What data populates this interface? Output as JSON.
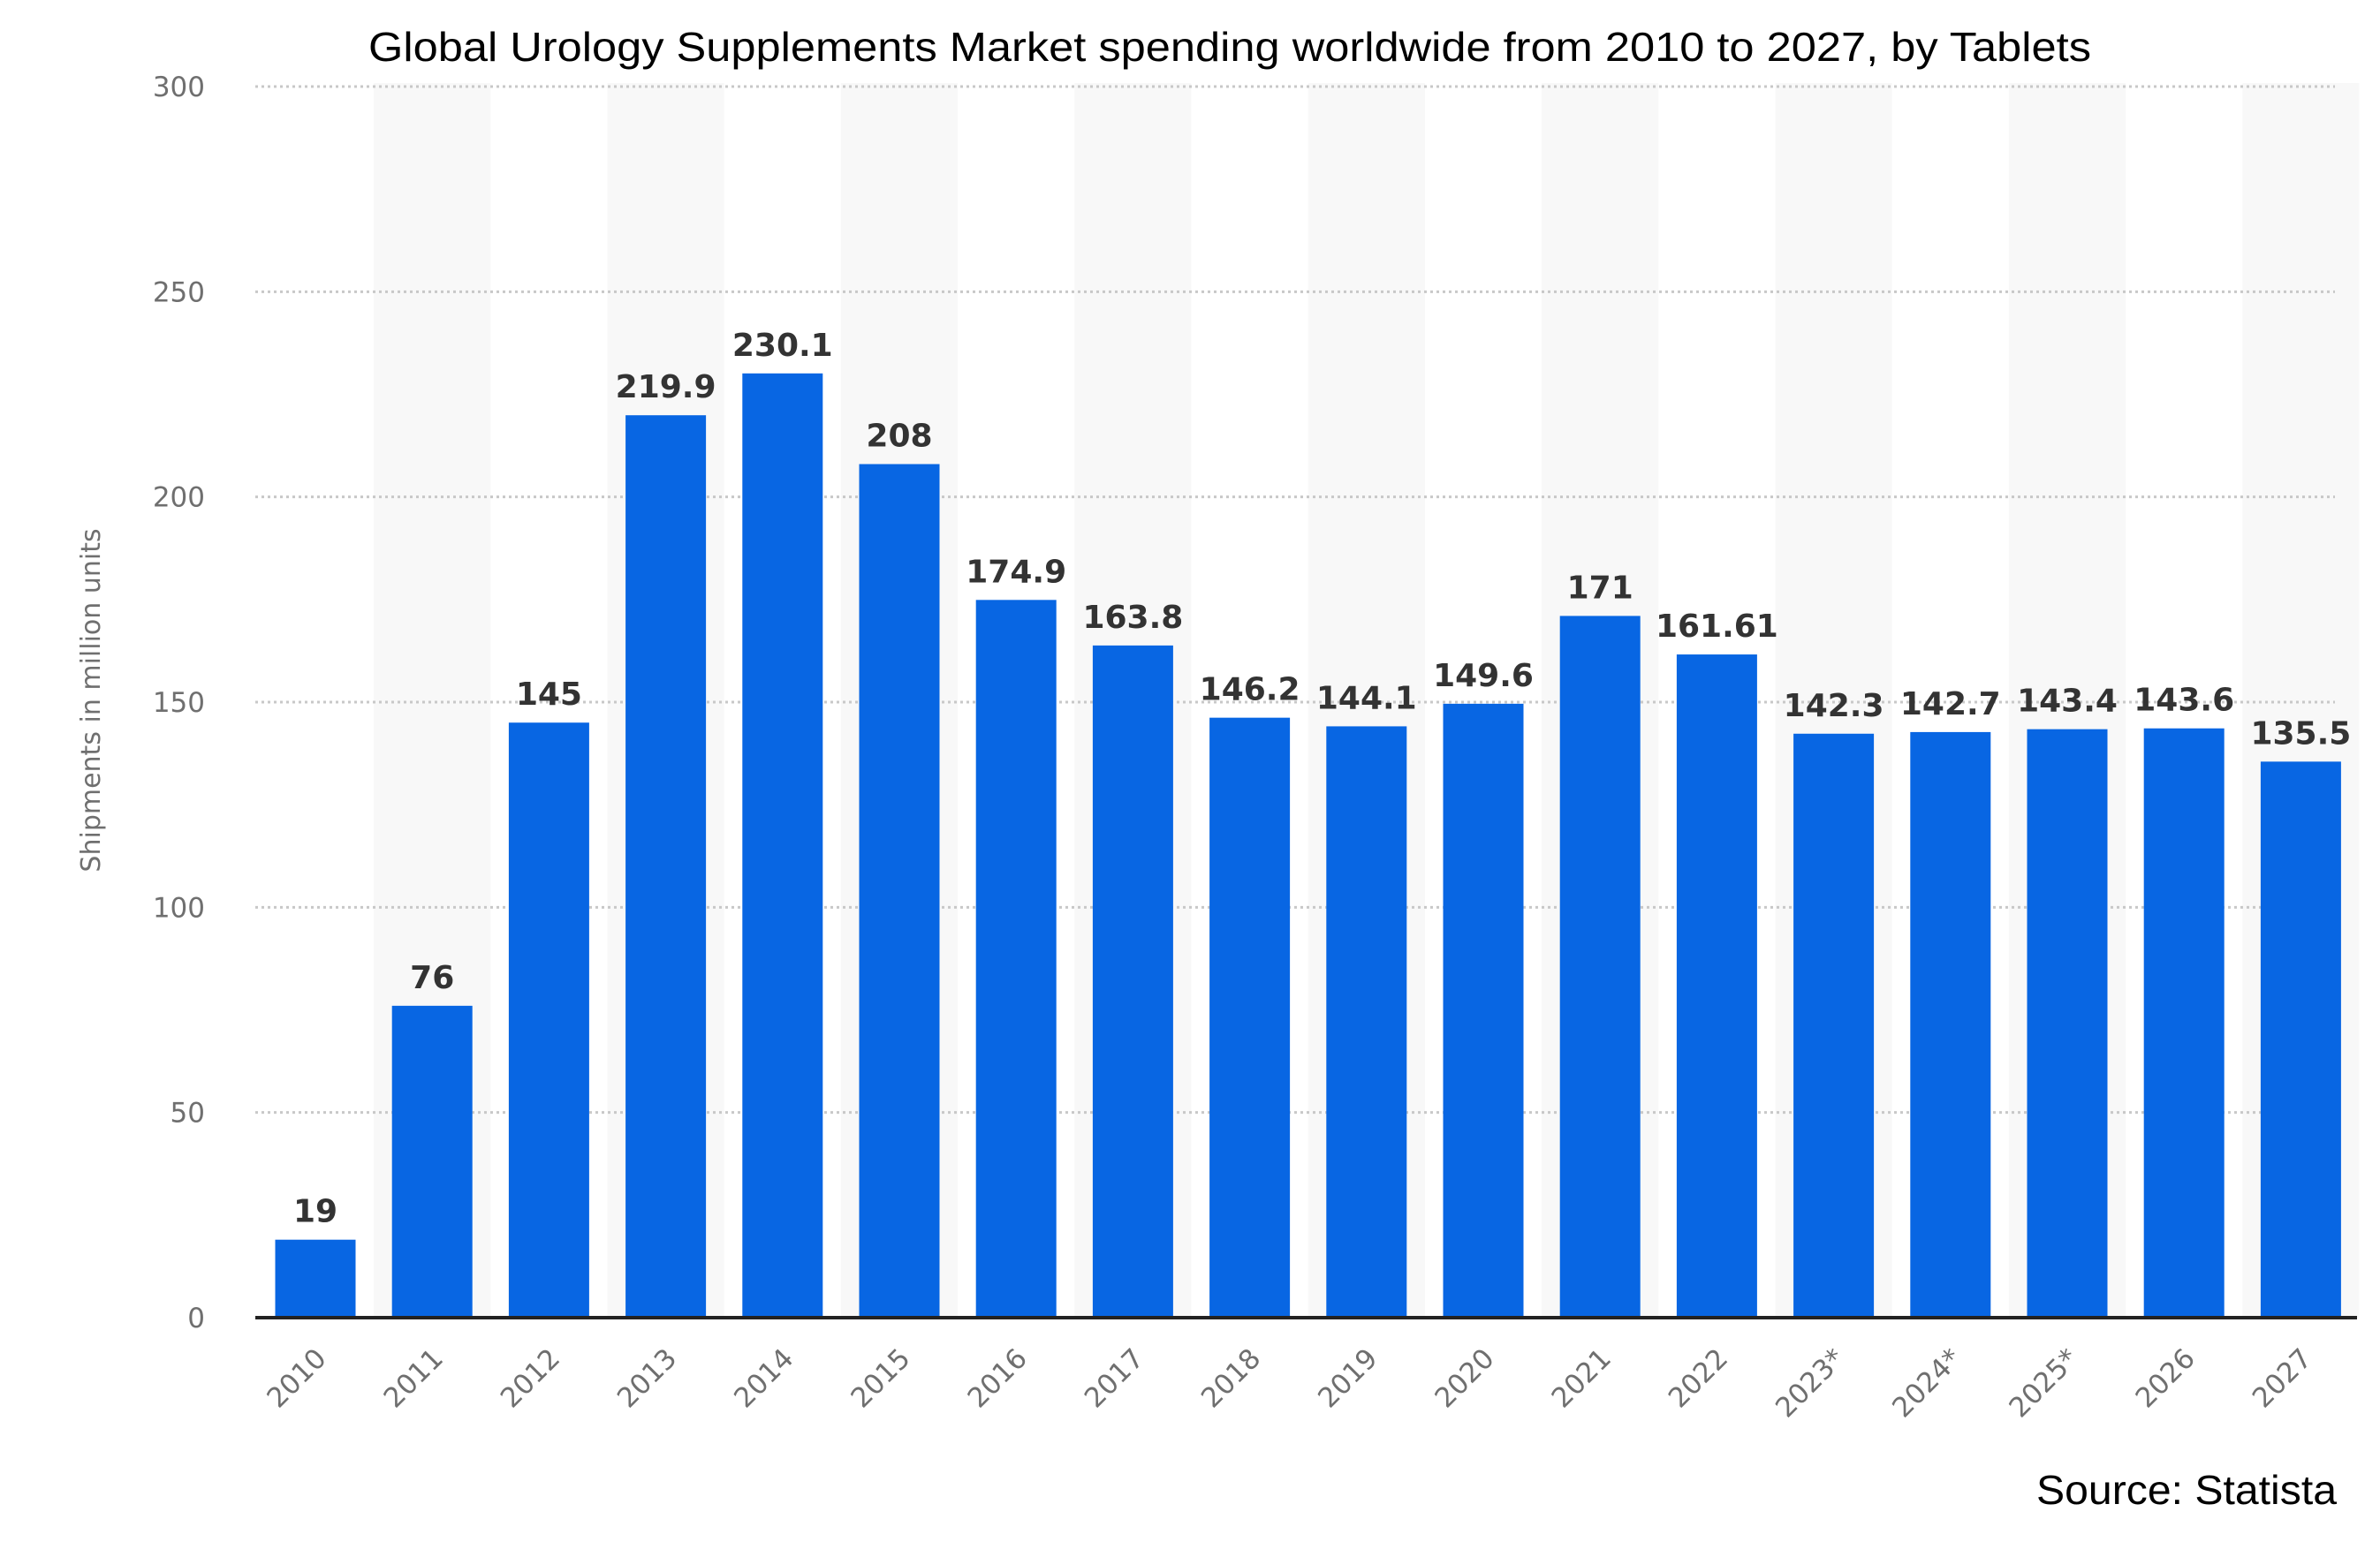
{
  "chart_data": {
    "type": "bar",
    "title": "Global Urology Supplements Market spending worldwide from 2010 to 2027, by Tablets",
    "xlabel": "",
    "ylabel": "Shipments in million units",
    "ylim": [
      0,
      300
    ],
    "yticks": [
      0,
      50,
      100,
      150,
      200,
      250,
      300
    ],
    "grid": true,
    "categories": [
      "2010",
      "2011",
      "2012",
      "2013",
      "2014",
      "2015",
      "2016",
      "2017",
      "2018",
      "2019",
      "2020",
      "2021",
      "2022",
      "2023*",
      "2024*",
      "2025*",
      "2026",
      "2027"
    ],
    "values": [
      19,
      76,
      145,
      219.9,
      230.1,
      208,
      174.9,
      163.8,
      146.2,
      144.1,
      149.6,
      171,
      161.61,
      142.3,
      142.7,
      143.4,
      143.6,
      135.5
    ],
    "value_labels": [
      "19",
      "76",
      "145",
      "219.9",
      "230.1",
      "208",
      "174.9",
      "163.8",
      "146.2",
      "144.1",
      "149.6",
      "171",
      "161.61",
      "142.3",
      "142.7",
      "143.4",
      "143.6",
      "135.5"
    ],
    "source": "Source: Statista",
    "colors": {
      "bar": "#0866e3",
      "band": "#f8f8f8",
      "grid": "#c8c8c8",
      "axis": "#222222",
      "tick_text": "#6f6f6f",
      "value_text": "#333333"
    }
  }
}
